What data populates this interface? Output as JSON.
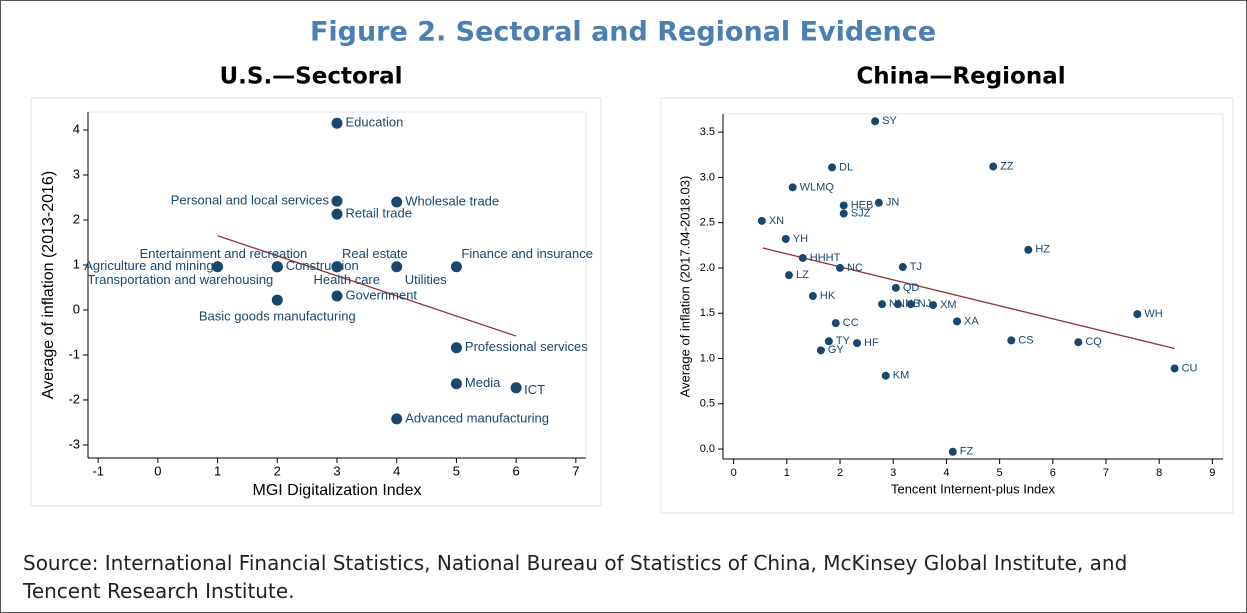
{
  "title": "Figure 2. Sectoral and Regional Evidence",
  "source": "Source: International Financial Statistics, National Bureau of Statistics of China, McKinsey Global Institute, and Tencent Research Institute.",
  "chart_data": [
    {
      "type": "scatter",
      "title": "U.S.—Sectoral",
      "xlabel": "MGI Digitalization Index",
      "ylabel": "Average of inflation (2013-2016)",
      "labels": [
        "Education",
        "Personal and local services",
        "Wholesale trade",
        "Retail trade",
        "Real estate",
        "Utilities",
        "Finance and insurance",
        "Agriculture and mining",
        "Construction",
        "Entertainment and recreation",
        "Transportation and warehousing",
        "Health care",
        "Government",
        "Basic goods manufacturing",
        "Professional services",
        "Media",
        "ICT",
        "Advanced manufacturing"
      ],
      "x": [
        3,
        3,
        4,
        3,
        3,
        4,
        5,
        1,
        2,
        2,
        2,
        3,
        3,
        2,
        5,
        5,
        6,
        4
      ],
      "values": [
        4.15,
        2.42,
        2.4,
        2.13,
        0.96,
        0.96,
        0.96,
        0.96,
        0.96,
        0.96,
        0.96,
        0.96,
        0.31,
        0.22,
        -0.84,
        -1.64,
        -1.73,
        -2.42
      ],
      "color": "#1a476f",
      "fit": {
        "x": [
          1,
          6
        ],
        "values": [
          1.65,
          -0.58
        ],
        "color": "#90353b"
      },
      "xlim": [
        -1.17,
        7.17
      ],
      "ylim": [
        -3.29,
        4.4
      ],
      "xticks": [
        -1,
        0,
        1,
        2,
        3,
        4,
        5,
        6,
        7
      ],
      "yticks": [
        -3,
        -2,
        -1,
        0,
        1,
        2,
        3,
        4
      ]
    },
    {
      "type": "scatter",
      "title": "China—Regional",
      "xlabel": "Tencent Internent-plus Index",
      "ylabel": "Average of inflation (2017.04-2018.03)",
      "labels": [
        "SY",
        "DL",
        "ZZ",
        "WLMQ",
        "HEB",
        "JN",
        "SJZ",
        "XN",
        "HZ",
        "YH",
        "HHHT",
        "NC",
        "TJ",
        "LZ",
        "QD",
        "HK",
        "NN",
        "NB",
        "NJ",
        "XM",
        "WH",
        "XA",
        "CC",
        "CS",
        "CQ",
        "TY",
        "HF",
        "GY",
        "CU",
        "KM",
        "FZ"
      ],
      "x": [
        2.66,
        1.85,
        4.88,
        1.11,
        2.07,
        2.73,
        2.07,
        0.53,
        5.54,
        0.98,
        1.3,
        2.0,
        3.18,
        1.04,
        3.05,
        1.49,
        2.79,
        3.09,
        3.33,
        3.75,
        7.59,
        4.2,
        1.92,
        5.22,
        6.48,
        1.79,
        2.32,
        1.64,
        8.29,
        2.86,
        4.12
      ],
      "values": [
        3.62,
        3.11,
        3.12,
        2.89,
        2.69,
        2.72,
        2.6,
        2.52,
        2.2,
        2.32,
        2.11,
        2.0,
        2.01,
        1.92,
        1.78,
        1.69,
        1.6,
        1.6,
        1.6,
        1.59,
        1.49,
        1.41,
        1.39,
        1.2,
        1.18,
        1.19,
        1.17,
        1.09,
        0.89,
        0.81,
        -0.03
      ],
      "color": "#1a476f",
      "fit": {
        "x": [
          0.55,
          8.29
        ],
        "values": [
          2.22,
          1.11
        ],
        "color": "#90353b"
      },
      "xlim": [
        -0.2,
        9.2
      ],
      "ylim": [
        -0.11,
        3.7
      ],
      "xticks": [
        0,
        1,
        2,
        3,
        4,
        5,
        6,
        7,
        8,
        9
      ],
      "yticks": [
        {
          "value": 0,
          "label": "0.0"
        },
        0.5,
        {
          "value": 1,
          "label": "1.0"
        },
        1.5,
        {
          "value": 2,
          "label": "2.0"
        },
        2.5,
        {
          "value": 3,
          "label": "3.0"
        },
        3.5
      ]
    }
  ]
}
